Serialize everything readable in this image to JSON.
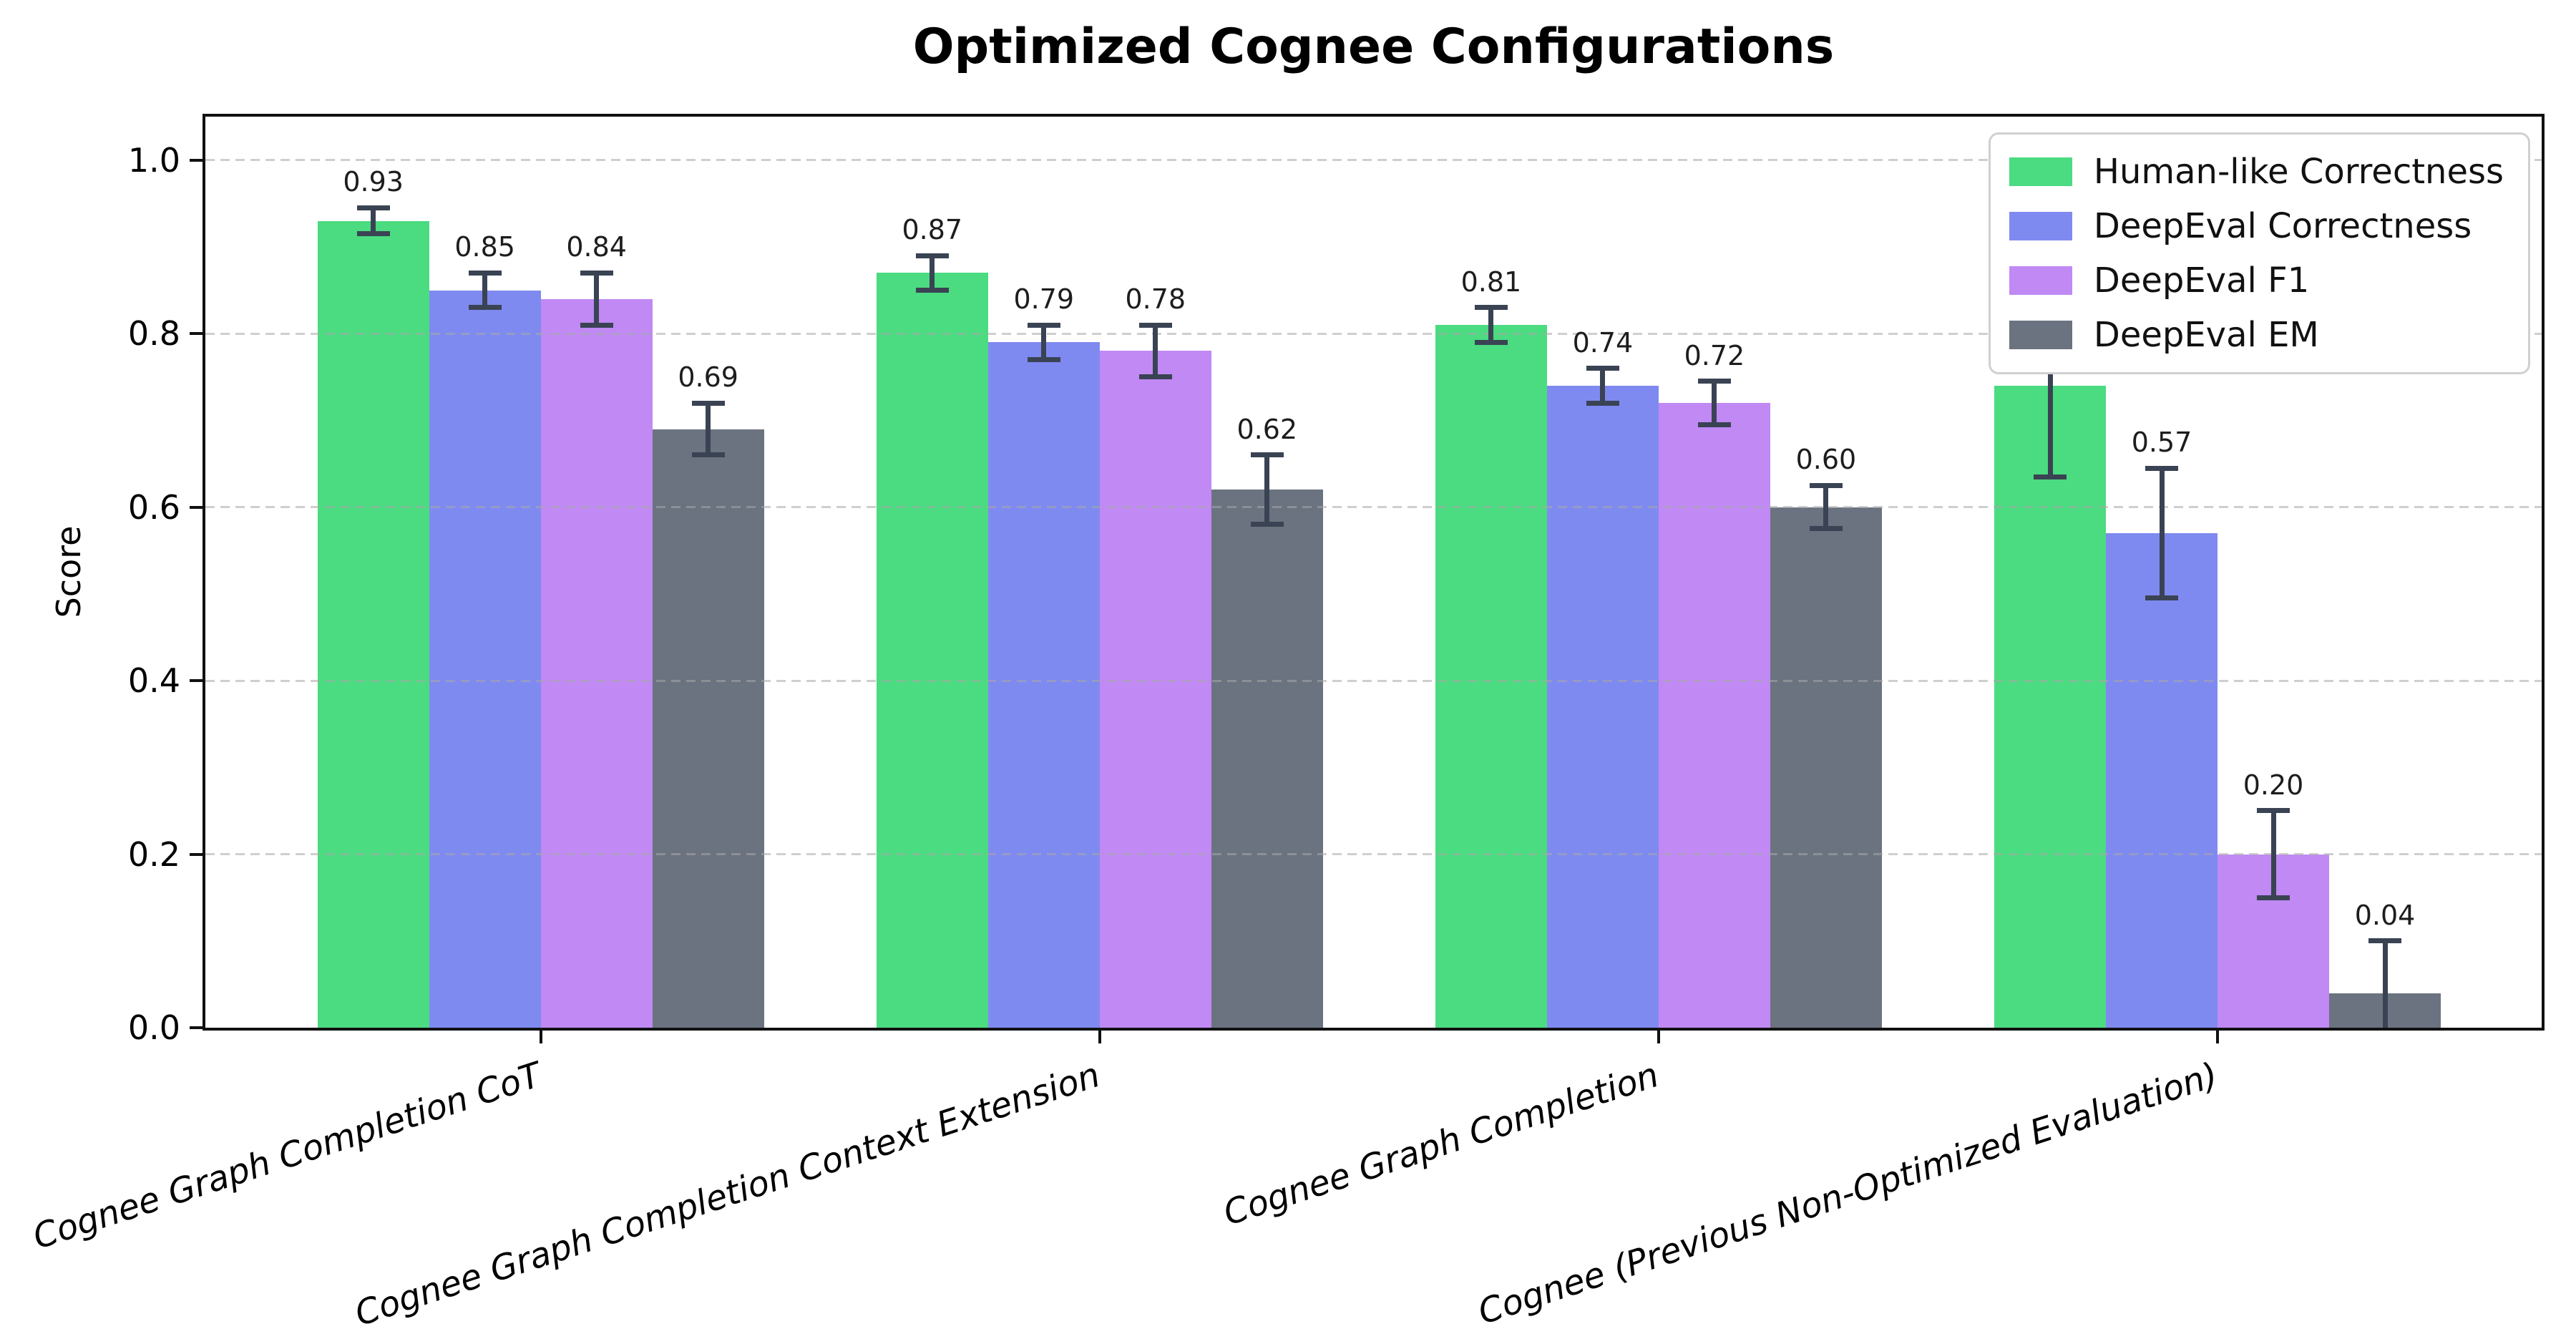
{
  "chart_data": {
    "type": "bar",
    "title": "Optimized Cognee Configurations",
    "xlabel": "",
    "ylabel": "Score",
    "ylim": [
      0,
      1.05
    ],
    "yticks": [
      0,
      0.2,
      0.4,
      0.6,
      0.8,
      1.0
    ],
    "ytick_labels": [
      "0.0",
      "0.2",
      "0.4",
      "0.6",
      "0.8",
      "1.0"
    ],
    "grid": "horizontal dashed",
    "legend_position": "upper right",
    "error_bar_color": "#3a4353",
    "categories": [
      "Cognee Graph Completion CoT",
      "Cognee Graph Completion Context Extension",
      "Cognee Graph Completion",
      "Cognee (Previous Non-Optimized Evaluation)"
    ],
    "series": [
      {
        "name": "Human-like Correctness",
        "color": "#4bdb80",
        "values": [
          0.93,
          0.87,
          0.81,
          0.74
        ],
        "errors": [
          0.015,
          0.02,
          0.02,
          0.105
        ],
        "labels": [
          "0.93",
          "0.87",
          "0.81",
          "0.74"
        ]
      },
      {
        "name": "DeepEval Correctness",
        "color": "#7f8af0",
        "values": [
          0.85,
          0.79,
          0.74,
          0.57
        ],
        "errors": [
          0.02,
          0.02,
          0.02,
          0.075
        ],
        "labels": [
          "0.85",
          "0.79",
          "0.74",
          "0.57"
        ]
      },
      {
        "name": "DeepEval F1",
        "color": "#c089f4",
        "values": [
          0.84,
          0.78,
          0.72,
          0.2
        ],
        "errors": [
          0.03,
          0.03,
          0.025,
          0.05
        ],
        "labels": [
          "0.84",
          "0.78",
          "0.72",
          "0.20"
        ]
      },
      {
        "name": "DeepEval EM",
        "color": "#6b7280",
        "values": [
          0.69,
          0.62,
          0.6,
          0.04
        ],
        "errors": [
          0.03,
          0.04,
          0.025,
          0.06
        ],
        "labels": [
          "0.69",
          "0.62",
          "0.60",
          "0.04"
        ]
      }
    ]
  }
}
